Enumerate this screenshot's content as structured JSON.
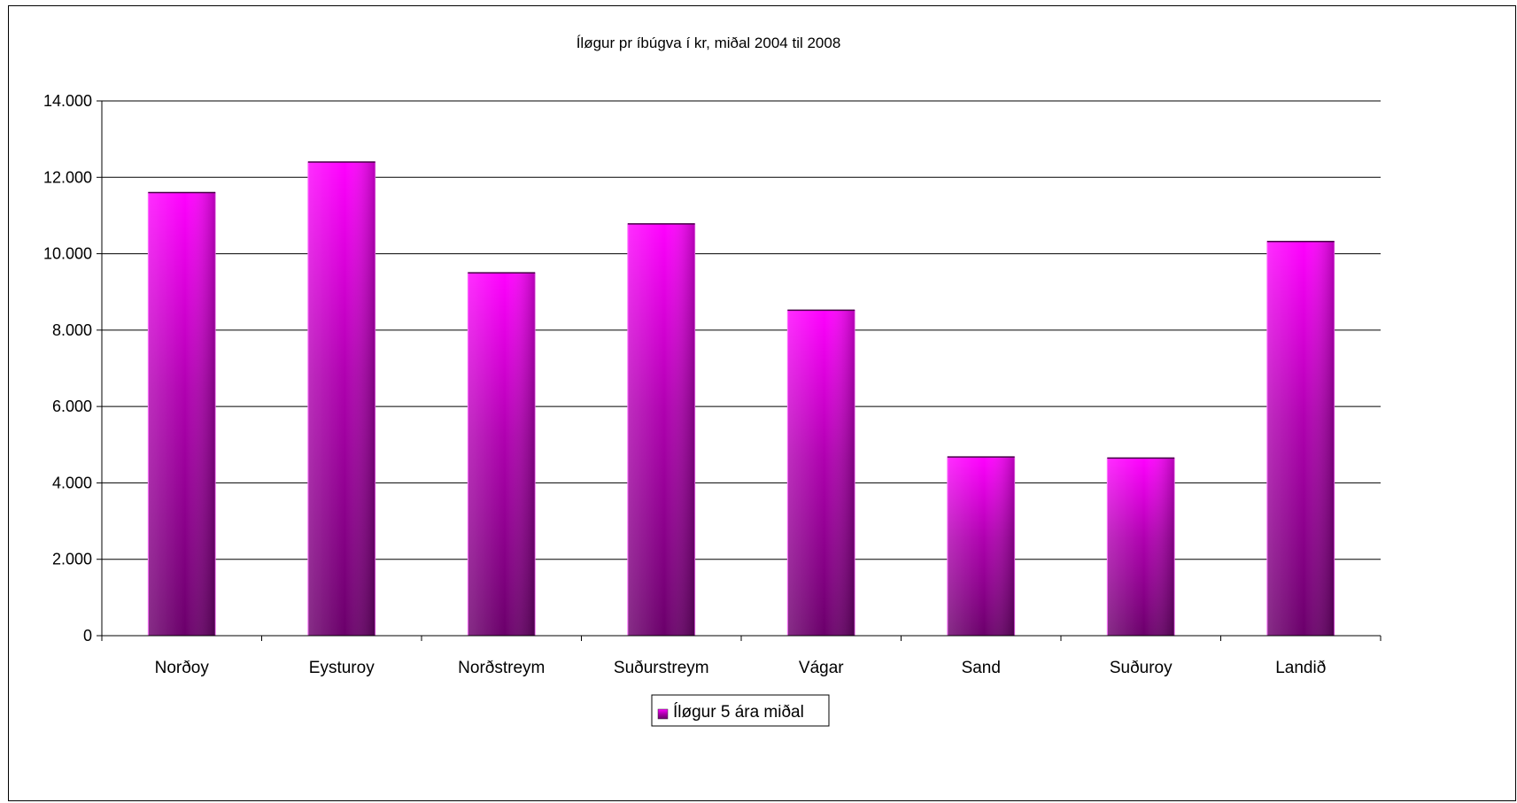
{
  "chart_data": {
    "type": "bar",
    "title": "Íløgur pr íbúgva í kr, miðal 2004 til 2008",
    "xlabel": "",
    "ylabel": "",
    "categories": [
      "Norðoy",
      "Eysturoy",
      "Norðstreym",
      "Suðurstreym",
      "Vágar",
      "Sand",
      "Suðuroy",
      "Landið"
    ],
    "series": [
      {
        "name": "Íløgur 5 ára miðal",
        "values": [
          11600,
          12400,
          9500,
          10780,
          8520,
          4680,
          4650,
          10320
        ]
      }
    ],
    "ylim": [
      0,
      14000
    ],
    "yticks": [
      0,
      2000,
      4000,
      6000,
      8000,
      10000,
      12000,
      14000
    ],
    "ytick_labels": [
      "0",
      "2.000",
      "4.000",
      "6.000",
      "8.000",
      "10.000",
      "12.000",
      "14.000"
    ],
    "grid": true,
    "legend_position": "bottom",
    "colors": {
      "bar_light": "#ff00ff",
      "bar_mid": "#b000b0",
      "bar_dark": "#6a006a",
      "grid": "#000000"
    }
  }
}
